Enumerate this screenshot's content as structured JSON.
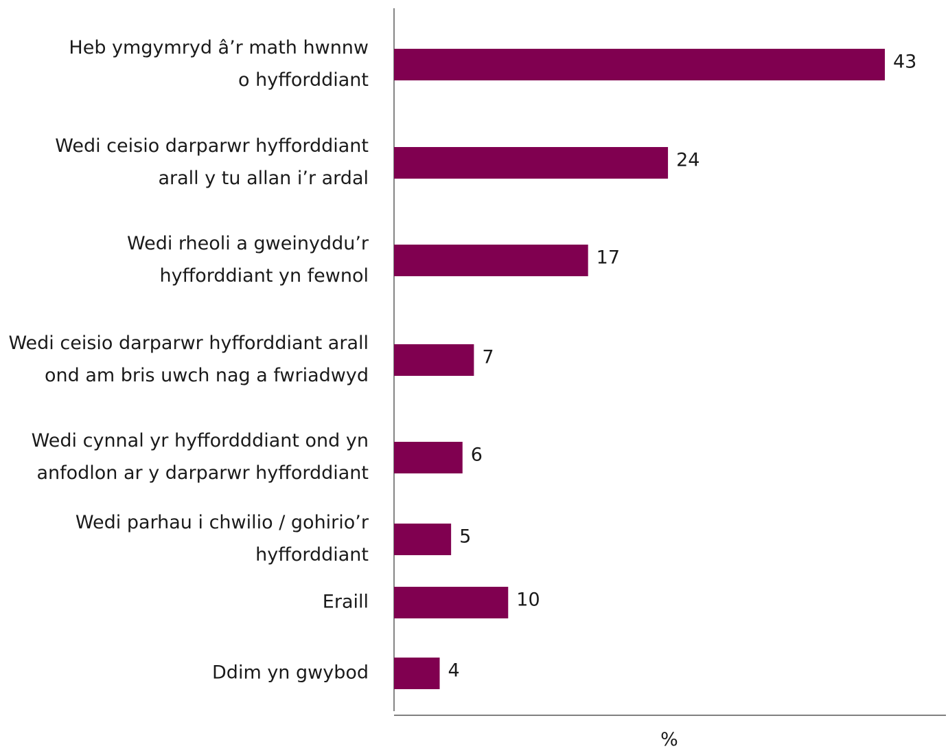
{
  "chart_data": {
    "type": "bar",
    "orientation": "horizontal",
    "categories": [
      [
        "Heb ymgymryd â’r math hwnnw",
        "o hyfforddiant"
      ],
      [
        "Wedi ceisio darparwr hyfforddiant",
        "arall y tu allan i’r ardal"
      ],
      [
        "Wedi rheoli a gweinyddu’r",
        "hyfforddiant yn fewnol"
      ],
      [
        "Wedi ceisio darparwr hyfforddiant arall",
        "ond am bris uwch nag a fwriadwyd"
      ],
      [
        "Wedi cynnal yr hyffordddiant ond yn",
        "anfodlon ar y darparwr hyfforddiant"
      ],
      [
        "Wedi parhau i chwilio / gohirio’r",
        "hyfforddiant"
      ],
      [
        "Eraill"
      ],
      [
        "Ddim yn gwybod"
      ]
    ],
    "values": [
      43,
      24,
      17,
      7,
      6,
      5,
      10,
      4
    ],
    "value_labels": [
      "43",
      "24",
      "17",
      "7",
      "6",
      "5",
      "10",
      "4"
    ],
    "xlabel": "%",
    "ylabel": "",
    "xlim": [
      0,
      48
    ],
    "bar_color": "#800050",
    "grid": false,
    "legend": "none"
  }
}
